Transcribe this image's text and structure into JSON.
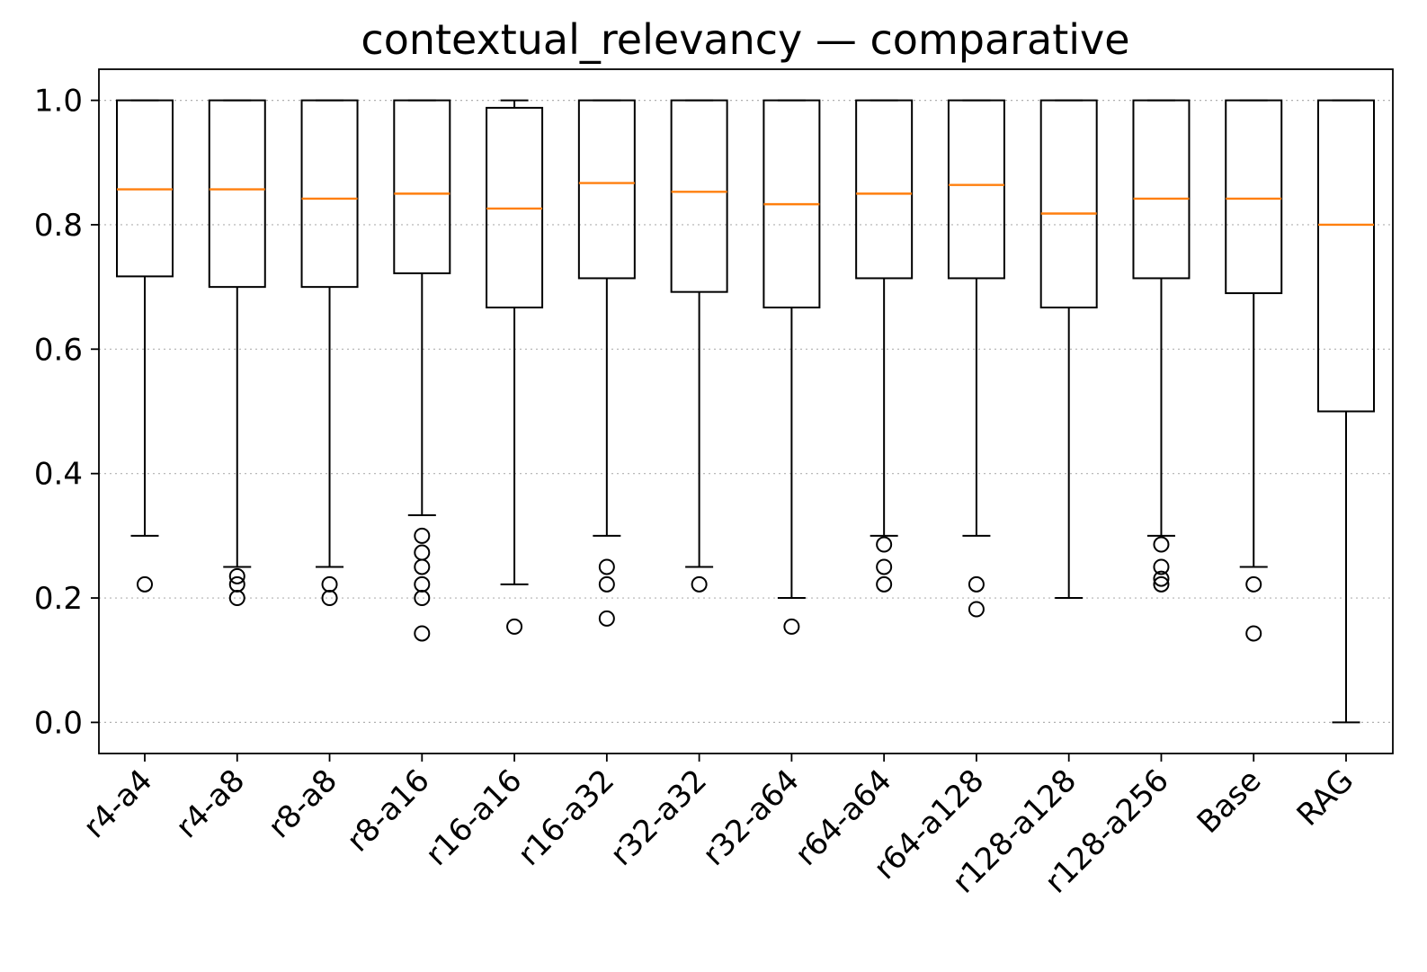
{
  "chart_data": {
    "type": "box",
    "title": "contextual_relevancy — comparative",
    "xlabel": "",
    "ylabel": "",
    "ylim": [
      -0.05,
      1.05
    ],
    "yticks": [
      "0.0",
      "0.2",
      "0.4",
      "0.6",
      "0.8",
      "1.0"
    ],
    "ytick_values": [
      0.0,
      0.2,
      0.4,
      0.6,
      0.8,
      1.0
    ],
    "grid": "horizontal-dotted",
    "colors": {
      "median": "#ff7f0e",
      "box": "#000000",
      "grid": "#b0b0b0"
    },
    "categories": [
      "r4-a4",
      "r4-a8",
      "r8-a8",
      "r8-a16",
      "r16-a16",
      "r16-a32",
      "r32-a32",
      "r32-a64",
      "r64-a64",
      "r64-a128",
      "r128-a128",
      "r128-a256",
      "Base",
      "RAG"
    ],
    "boxes": [
      {
        "whislo": 0.3,
        "q1": 0.717,
        "med": 0.857,
        "q3": 1.0,
        "whishi": 1.0,
        "fliers": [
          0.222
        ]
      },
      {
        "whislo": 0.25,
        "q1": 0.7,
        "med": 0.857,
        "q3": 1.0,
        "whishi": 1.0,
        "fliers": [
          0.235,
          0.222,
          0.2
        ]
      },
      {
        "whislo": 0.25,
        "q1": 0.7,
        "med": 0.842,
        "q3": 1.0,
        "whishi": 1.0,
        "fliers": [
          0.222,
          0.2
        ]
      },
      {
        "whislo": 0.333,
        "q1": 0.722,
        "med": 0.85,
        "q3": 1.0,
        "whishi": 1.0,
        "fliers": [
          0.3,
          0.273,
          0.25,
          0.222,
          0.2,
          0.143
        ]
      },
      {
        "whislo": 0.222,
        "q1": 0.667,
        "med": 0.826,
        "q3": 0.988,
        "whishi": 1.0,
        "fliers": [
          0.154
        ]
      },
      {
        "whislo": 0.3,
        "q1": 0.714,
        "med": 0.867,
        "q3": 1.0,
        "whishi": 1.0,
        "fliers": [
          0.25,
          0.222,
          0.167
        ]
      },
      {
        "whislo": 0.25,
        "q1": 0.692,
        "med": 0.853,
        "q3": 1.0,
        "whishi": 1.0,
        "fliers": [
          0.222
        ]
      },
      {
        "whislo": 0.2,
        "q1": 0.667,
        "med": 0.833,
        "q3": 1.0,
        "whishi": 1.0,
        "fliers": [
          0.154
        ]
      },
      {
        "whislo": 0.3,
        "q1": 0.714,
        "med": 0.85,
        "q3": 1.0,
        "whishi": 1.0,
        "fliers": [
          0.286,
          0.25,
          0.222
        ]
      },
      {
        "whislo": 0.3,
        "q1": 0.714,
        "med": 0.864,
        "q3": 1.0,
        "whishi": 1.0,
        "fliers": [
          0.222,
          0.182
        ]
      },
      {
        "whislo": 0.2,
        "q1": 0.667,
        "med": 0.818,
        "q3": 1.0,
        "whishi": 1.0,
        "fliers": []
      },
      {
        "whislo": 0.3,
        "q1": 0.714,
        "med": 0.842,
        "q3": 1.0,
        "whishi": 1.0,
        "fliers": [
          0.286,
          0.25,
          0.231,
          0.222
        ]
      },
      {
        "whislo": 0.25,
        "q1": 0.69,
        "med": 0.842,
        "q3": 1.0,
        "whishi": 1.0,
        "fliers": [
          0.222,
          0.143
        ]
      },
      {
        "whislo": 0.0,
        "q1": 0.5,
        "med": 0.8,
        "q3": 1.0,
        "whishi": 1.0,
        "fliers": []
      }
    ]
  }
}
